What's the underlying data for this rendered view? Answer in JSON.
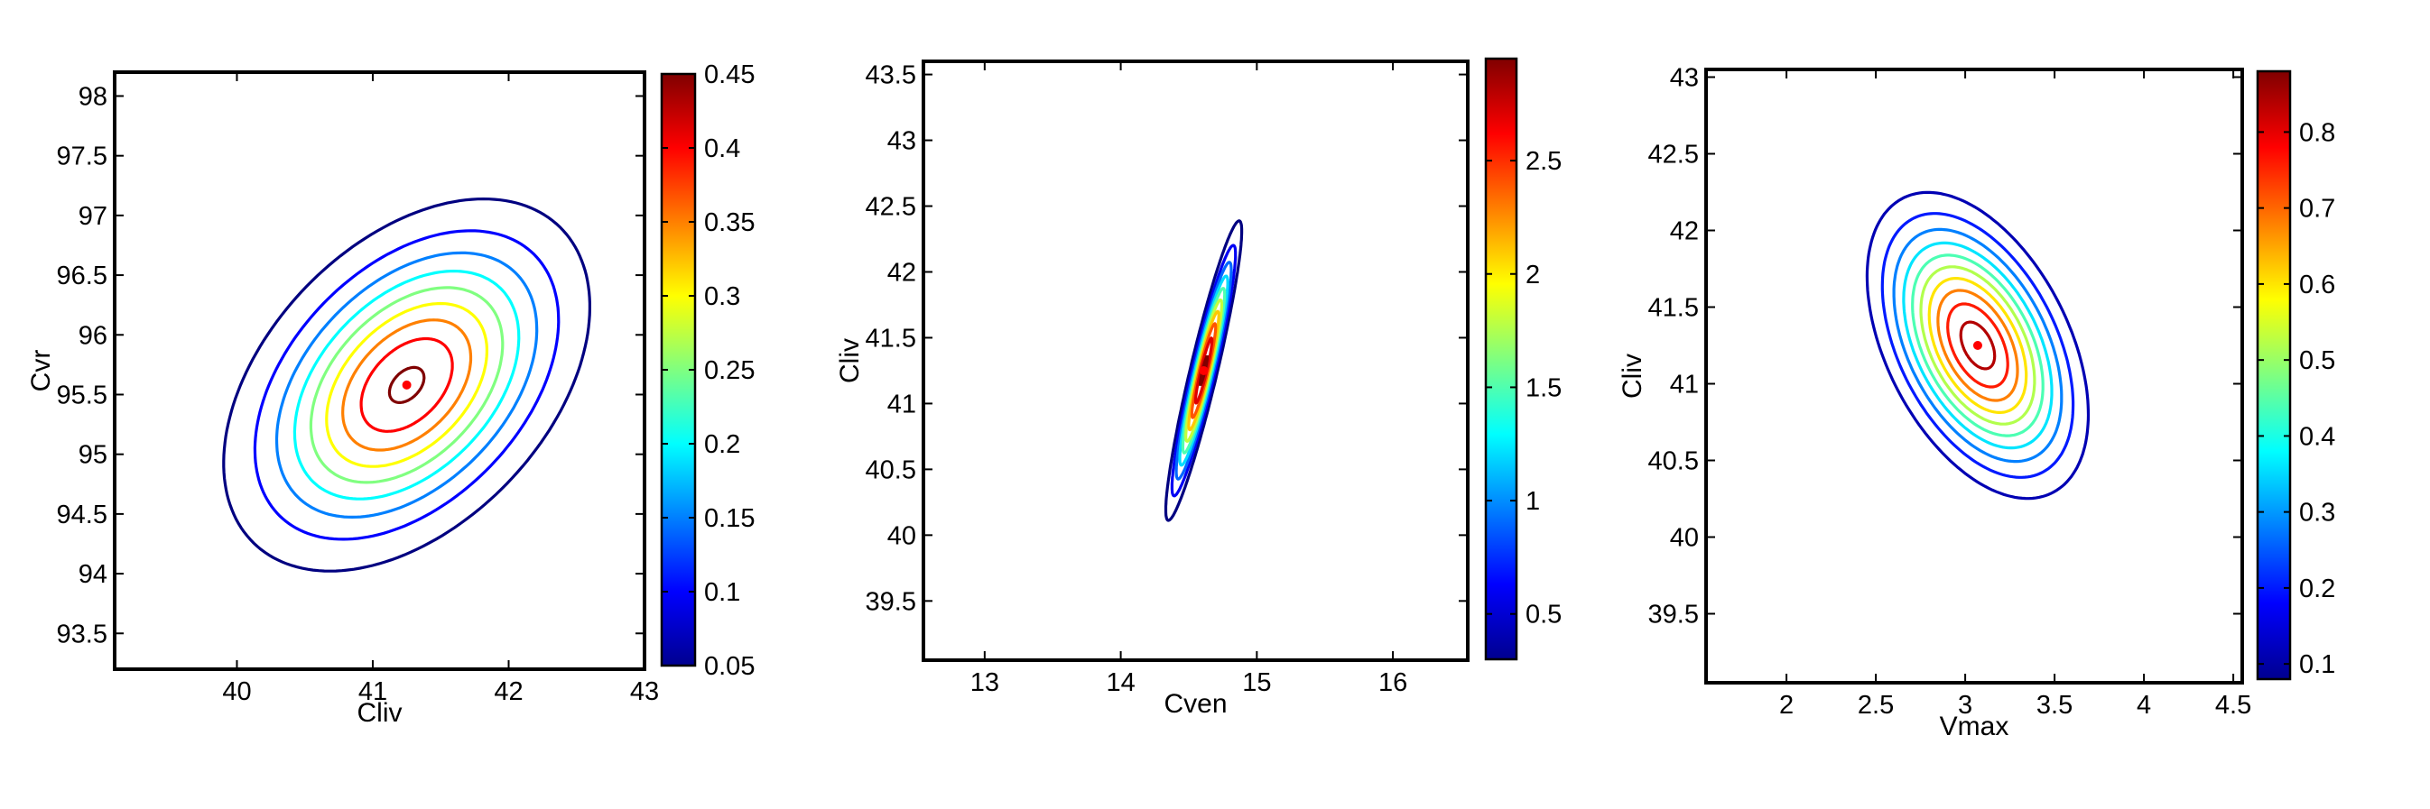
{
  "chart_data": [
    {
      "type": "contour",
      "xlabel": "Cliv",
      "ylabel": "Cvr",
      "xlim": [
        39.1,
        43.0
      ],
      "ylim": [
        93.2,
        98.2
      ],
      "xticks": [
        "40",
        "41",
        "42",
        "43"
      ],
      "xtick_values": [
        40,
        41,
        42,
        43
      ],
      "yticks": [
        "93.5",
        "94",
        "94.5",
        "95",
        "95.5",
        "96",
        "96.5",
        "97",
        "97.5",
        "98"
      ],
      "ytick_values": [
        93.5,
        94,
        94.5,
        95,
        95.5,
        96,
        96.5,
        97,
        97.5,
        98
      ],
      "center": [
        41.25,
        95.58
      ],
      "peak_marker": [
        41.25,
        95.58
      ],
      "contour_levels": [
        0.05,
        0.1,
        0.15,
        0.2,
        0.25,
        0.3,
        0.35,
        0.4,
        0.45
      ],
      "sigma_x": 0.64,
      "sigma_y": 0.74,
      "correlation": 0.42,
      "colorbar": {
        "range": [
          0.05,
          0.45
        ],
        "ticks": [
          "0.05",
          "0.1",
          "0.15",
          "0.2",
          "0.25",
          "0.3",
          "0.35",
          "0.4",
          "0.45"
        ],
        "tick_values": [
          0.05,
          0.1,
          0.15,
          0.2,
          0.25,
          0.3,
          0.35,
          0.4,
          0.45
        ]
      }
    },
    {
      "type": "contour",
      "xlabel": "Cven",
      "ylabel": "Cliv",
      "xlim": [
        12.55,
        16.55
      ],
      "ylim": [
        39.05,
        43.6
      ],
      "xticks": [
        "13",
        "14",
        "15",
        "16"
      ],
      "xtick_values": [
        13,
        14,
        15,
        16
      ],
      "yticks": [
        "39.5",
        "40",
        "40.5",
        "41",
        "41.5",
        "42",
        "42.5",
        "43",
        "43.5"
      ],
      "ytick_values": [
        39.5,
        40,
        40.5,
        41,
        41.5,
        42,
        42.5,
        43,
        43.5
      ],
      "center": [
        14.61,
        41.25
      ],
      "peak_marker": [
        14.61,
        41.25
      ],
      "contour_levels": [
        0.3,
        0.6,
        0.9,
        1.2,
        1.5,
        1.8,
        2.1,
        2.4,
        2.7,
        2.95
      ],
      "sigma_x": 0.13,
      "sigma_y": 0.53,
      "correlation": 0.93,
      "colorbar": {
        "range": [
          0.3,
          2.95
        ],
        "ticks": [
          "0.5",
          "1",
          "1.5",
          "2",
          "2.5"
        ],
        "tick_values": [
          0.5,
          1,
          1.5,
          2,
          2.5
        ]
      }
    },
    {
      "type": "contour",
      "xlabel": "Vmax",
      "ylabel": "Cliv",
      "xlim": [
        1.55,
        4.55
      ],
      "ylim": [
        39.05,
        43.05
      ],
      "xticks": [
        "2",
        "2.5",
        "3",
        "3.5",
        "4",
        "4.5"
      ],
      "xtick_values": [
        2,
        2.5,
        3,
        3.5,
        4,
        4.5
      ],
      "yticks": [
        "39.5",
        "40",
        "40.5",
        "41",
        "41.5",
        "42",
        "42.5",
        "43"
      ],
      "ytick_values": [
        39.5,
        40,
        40.5,
        41,
        41.5,
        42,
        42.5,
        43
      ],
      "center": [
        3.07,
        41.25
      ],
      "peak_marker": [
        3.07,
        41.25
      ],
      "contour_levels": [
        0.12,
        0.2,
        0.28,
        0.36,
        0.44,
        0.52,
        0.6,
        0.68,
        0.76,
        0.84
      ],
      "sigma_x": 0.31,
      "sigma_y": 0.5,
      "correlation": -0.45,
      "colorbar": {
        "range": [
          0.08,
          0.88
        ],
        "ticks": [
          "0.1",
          "0.2",
          "0.3",
          "0.4",
          "0.5",
          "0.6",
          "0.7",
          "0.8"
        ],
        "tick_values": [
          0.1,
          0.2,
          0.3,
          0.4,
          0.5,
          0.6,
          0.7,
          0.8
        ]
      }
    }
  ]
}
